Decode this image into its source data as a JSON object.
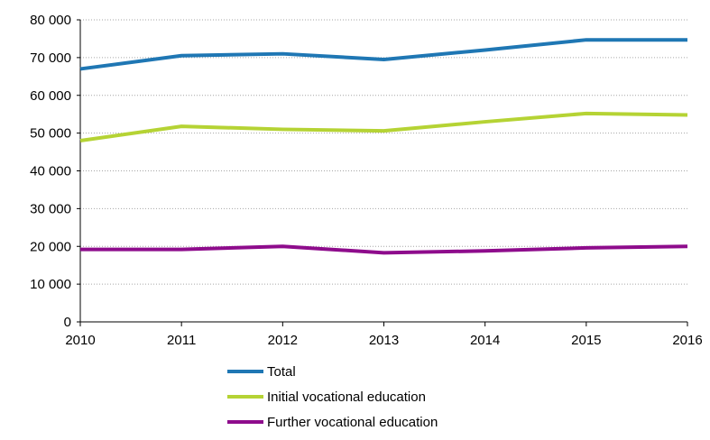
{
  "chart_data": {
    "type": "line",
    "title": "",
    "xlabel": "",
    "ylabel": "",
    "x": [
      "2010",
      "2011",
      "2012",
      "2013",
      "2014",
      "2015",
      "2016"
    ],
    "ylim": [
      0,
      80000
    ],
    "yticks": [
      0,
      10000,
      20000,
      30000,
      40000,
      50000,
      60000,
      70000,
      80000
    ],
    "ytick_labels": [
      "0",
      "10 000",
      "20 000",
      "30 000",
      "40 000",
      "50 000",
      "60 000",
      "70 000",
      "80 000"
    ],
    "grid": "horizontal dotted",
    "legend_position": "bottom",
    "series": [
      {
        "name": "Total",
        "color": "#1f77b4",
        "values": [
          67000,
          70500,
          71000,
          69500,
          72000,
          74700,
          74700
        ]
      },
      {
        "name": "Initial vocational education",
        "color": "#b5d334",
        "values": [
          48000,
          51800,
          51000,
          50600,
          53000,
          55200,
          54800
        ]
      },
      {
        "name": "Further vocational education",
        "color": "#8e0c8c",
        "values": [
          19200,
          19200,
          20000,
          18300,
          18800,
          19600,
          20000
        ]
      }
    ]
  }
}
